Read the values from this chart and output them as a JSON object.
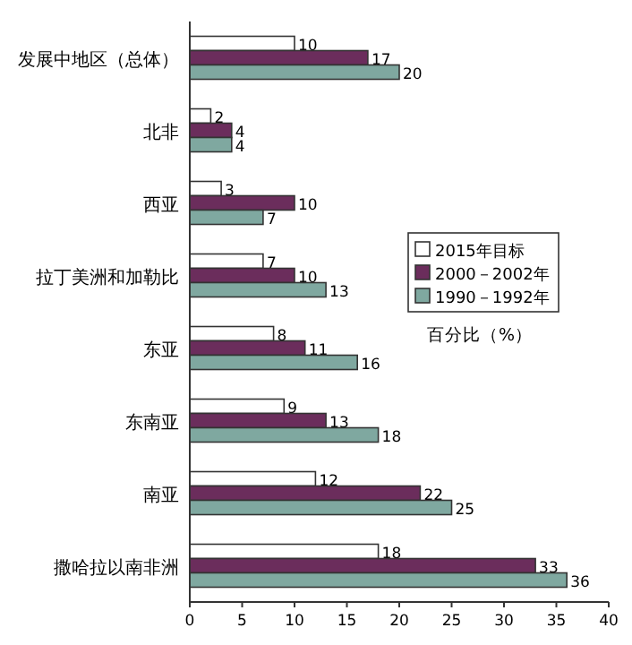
{
  "chart_data": {
    "type": "bar",
    "orientation": "horizontal",
    "categories": [
      "发展中地区（总体）",
      "北非",
      "西亚",
      "拉丁美洲和加勒比",
      "东亚",
      "东南亚",
      "南亚",
      "撒哈拉以南非洲"
    ],
    "series": [
      {
        "name": "2015年目标",
        "color": "#ffffff",
        "values": [
          10,
          2,
          3,
          7,
          8,
          9,
          12,
          18
        ]
      },
      {
        "name": "2000－2002年",
        "color": "#6b2d5c",
        "values": [
          17,
          4,
          10,
          10,
          11,
          13,
          22,
          33
        ]
      },
      {
        "name": "1990－1992年",
        "color": "#7fa8a0",
        "values": [
          20,
          4,
          7,
          13,
          16,
          18,
          25,
          36
        ]
      }
    ],
    "xlim": [
      0,
      40
    ],
    "xticks": [
      0,
      5,
      10,
      15,
      20,
      25,
      30,
      35,
      40
    ],
    "data_labels": true,
    "legend": "right",
    "grid": false,
    "annotations": [
      "百分比（%）"
    ]
  }
}
